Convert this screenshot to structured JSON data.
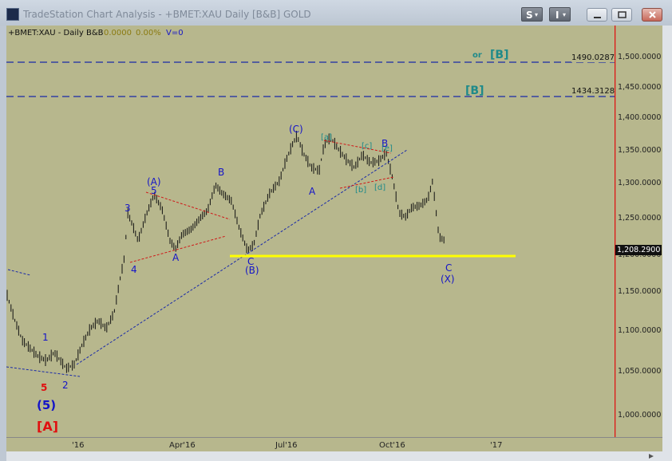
{
  "window": {
    "title": "TradeStation Chart Analysis - +BMET:XAU Daily [B&B] GOLD",
    "s_button": "S",
    "i_button": "I"
  },
  "header": {
    "symbol": "+BMET:XAU - Daily  B&B",
    "value1": "0.0000",
    "value2": "0.00%",
    "value3": "V=0"
  },
  "price_axis": {
    "ticks": [
      "1,500.0000",
      "1,450.0000",
      "1,400.0000",
      "1,350.0000",
      "1,300.0000",
      "1,250.0000",
      "1,200.0000",
      "1,150.0000",
      "1,100.0000",
      "1,050.0000",
      "1,000.0000"
    ],
    "last_price": "1,208.2900",
    "line1": "1490.0287",
    "line2": "1434.3128"
  },
  "time_axis": {
    "ticks": [
      "'16",
      "Apr'16",
      "Jul'16",
      "Oct'16",
      "'17"
    ]
  },
  "labels": {
    "or": "or",
    "b_bracket": "[B]",
    "b_bracket2": "[B]",
    "C_paren": "(C)",
    "A_paren": "(A)",
    "B_paren": "(B)",
    "X_paren": "(X)",
    "five_paren": "(5)",
    "A_bracket": "[A]",
    "n1": "1",
    "n2": "2",
    "n3": "3",
    "n4": "4",
    "n5": "5",
    "n5red": "5",
    "lA1": "A",
    "lB1": "B",
    "lC1": "C",
    "lA2": "A",
    "lB2": "B",
    "lC2": "C",
    "sa": "[a]",
    "sb": "[b]",
    "sc": "[c]",
    "sd": "[d]",
    "se": "[e]"
  },
  "colors": {
    "plot_bg": "#b7b78d",
    "bars": "#111111",
    "support": "#ffff00",
    "dashed_blue": "#1a2aa8",
    "dashed_red": "#d01818",
    "axis_red": "#e01010"
  }
}
